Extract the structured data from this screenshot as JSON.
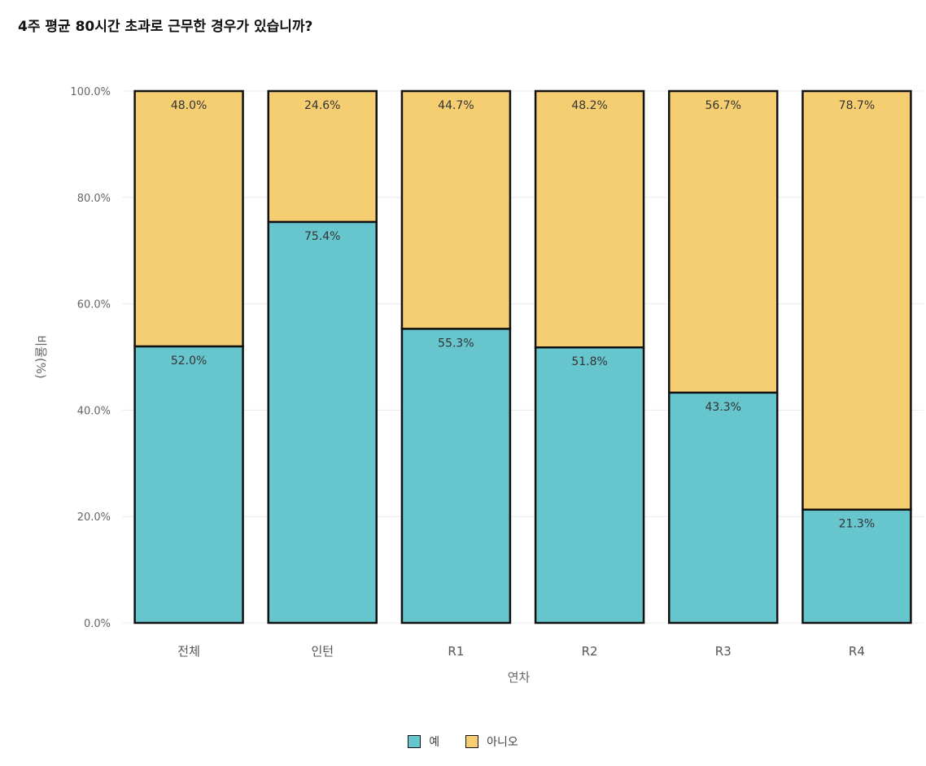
{
  "chart_data": {
    "type": "bar",
    "stacked": true,
    "title": "4주 평균 80시간 초과로 근무한 경우가 있습니까?",
    "xlabel": "연차",
    "ylabel": "비율(%)",
    "ylim": [
      0,
      100
    ],
    "yticks": [
      "0.0%",
      "20.0%",
      "40.0%",
      "60.0%",
      "80.0%",
      "100.0%"
    ],
    "categories": [
      "전체",
      "인턴",
      "R1",
      "R2",
      "R3",
      "R4"
    ],
    "series": [
      {
        "name": "예",
        "color": "#67c5cd",
        "values": [
          52.0,
          75.4,
          55.3,
          51.8,
          43.3,
          21.3
        ],
        "labels": [
          "52.0%",
          "75.4%",
          "55.3%",
          "51.8%",
          "43.3%",
          "21.3%"
        ]
      },
      {
        "name": "아니오",
        "color": "#f6ce72",
        "values": [
          48.0,
          24.6,
          44.7,
          48.2,
          56.7,
          78.7
        ],
        "labels": [
          "48.0%",
          "24.6%",
          "44.7%",
          "48.2%",
          "56.7%",
          "78.7%"
        ]
      }
    ],
    "grid": true,
    "legend_position": "bottom"
  }
}
